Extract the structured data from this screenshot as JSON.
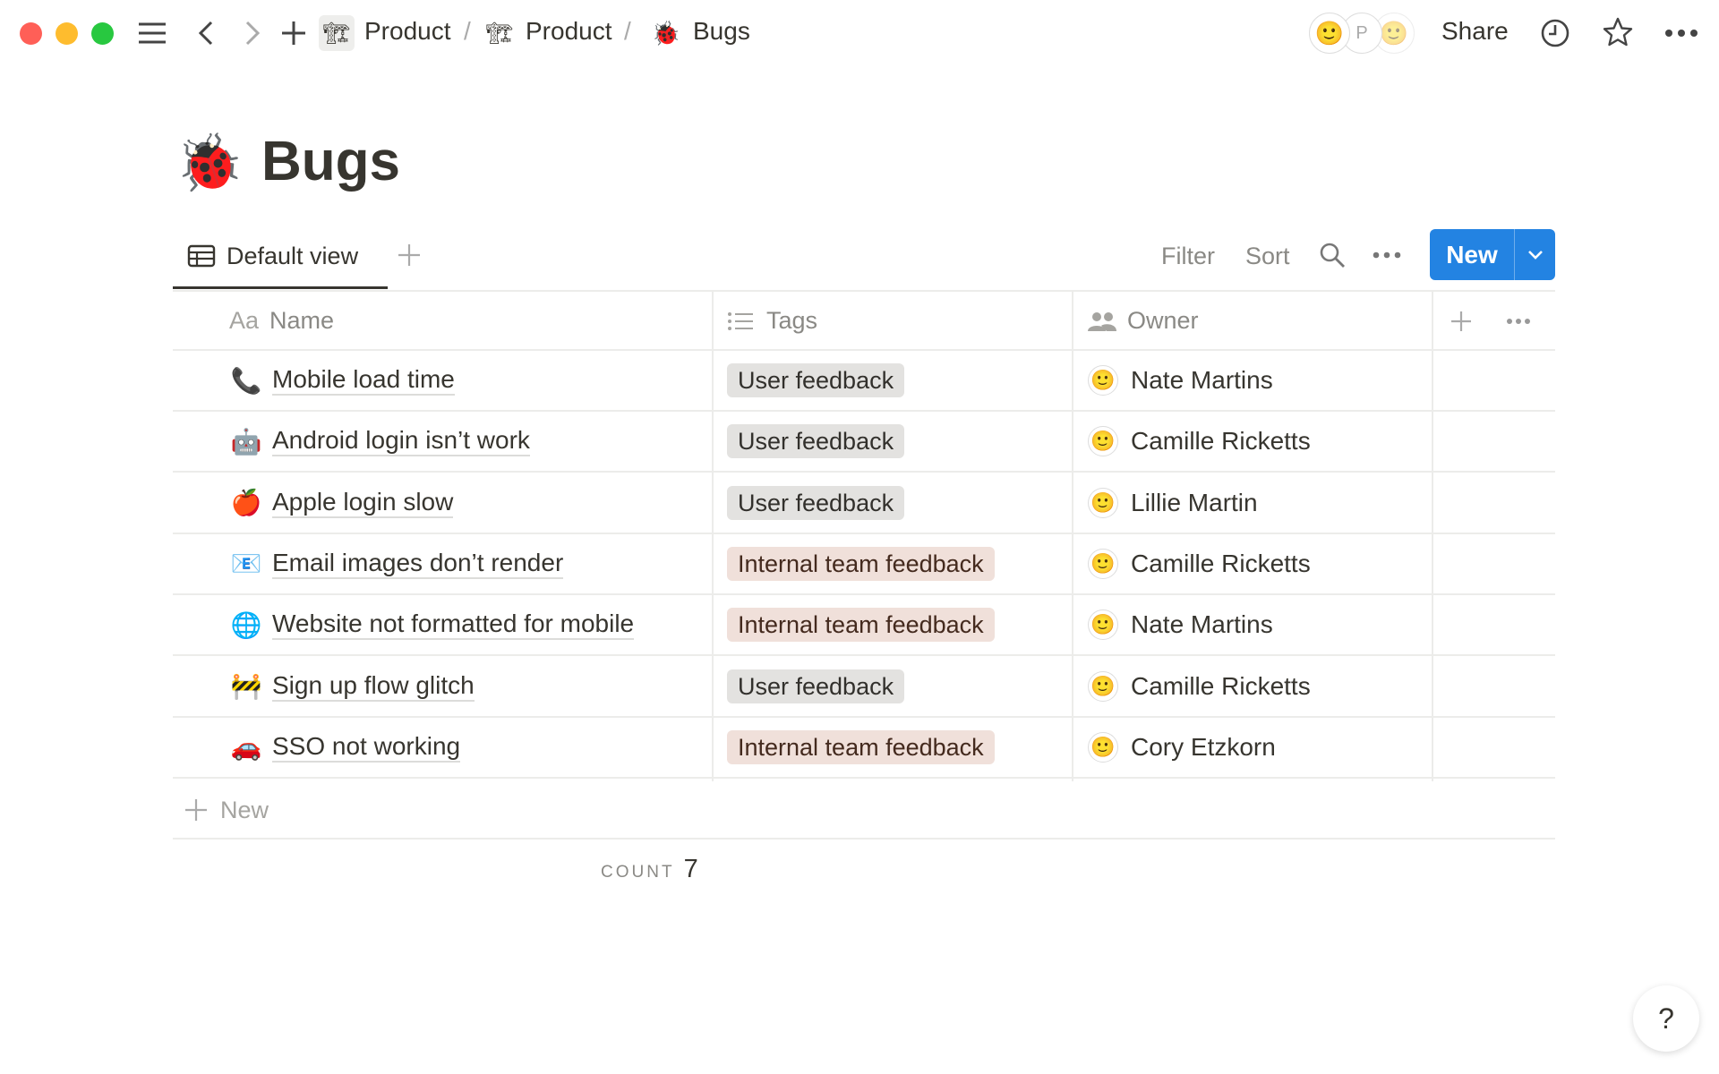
{
  "window": {
    "traffic_lights": [
      "#ff5f57",
      "#febc2e",
      "#28c840"
    ]
  },
  "breadcrumb": [
    {
      "icon": "crane-icon",
      "label": "Product"
    },
    {
      "icon": "crane-icon",
      "label": "Product"
    },
    {
      "icon": "ladybug-icon",
      "label": "Bugs"
    }
  ],
  "breadcrumb_separator": "/",
  "topbar": {
    "avatar_initial": "P",
    "share_label": "Share"
  },
  "page": {
    "icon": "🐞",
    "title": "Bugs"
  },
  "views": {
    "active": "Default view"
  },
  "toolbar": {
    "filter": "Filter",
    "sort": "Sort",
    "new": "New",
    "accent": "#2383e2"
  },
  "columns": [
    {
      "icon": "Aa",
      "label": "Name"
    },
    {
      "icon": "list-icon",
      "label": "Tags"
    },
    {
      "icon": "people-icon",
      "label": "Owner"
    }
  ],
  "rows": [
    {
      "emoji": "📞",
      "name": "Mobile load time",
      "tag": "User feedback",
      "tag_type": "user",
      "owner": "Nate Martins"
    },
    {
      "emoji": "🤖",
      "name": "Android login isn’t work",
      "tag": "User feedback",
      "tag_type": "user",
      "owner": "Camille Ricketts"
    },
    {
      "emoji": "🍎",
      "name": "Apple login slow",
      "tag": "User feedback",
      "tag_type": "user",
      "owner": "Lillie Martin"
    },
    {
      "emoji": "📧",
      "name": "Email images don’t render",
      "tag": "Internal team feedback",
      "tag_type": "internal",
      "owner": "Camille Ricketts"
    },
    {
      "emoji": "🌐",
      "name": "Website not formatted for mobile",
      "tag": "Internal team feedback",
      "tag_type": "internal",
      "owner": "Nate Martins"
    },
    {
      "emoji": "🚧",
      "name": "Sign up flow glitch",
      "tag": "User feedback",
      "tag_type": "user",
      "owner": "Camille Ricketts"
    },
    {
      "emoji": "🚗",
      "name": "SSO not working",
      "tag": "Internal team feedback",
      "tag_type": "internal",
      "owner": "Cory Etzkorn"
    }
  ],
  "new_row_label": "New",
  "footer": {
    "count_label": "COUNT",
    "count_value": "7"
  },
  "help": "?"
}
